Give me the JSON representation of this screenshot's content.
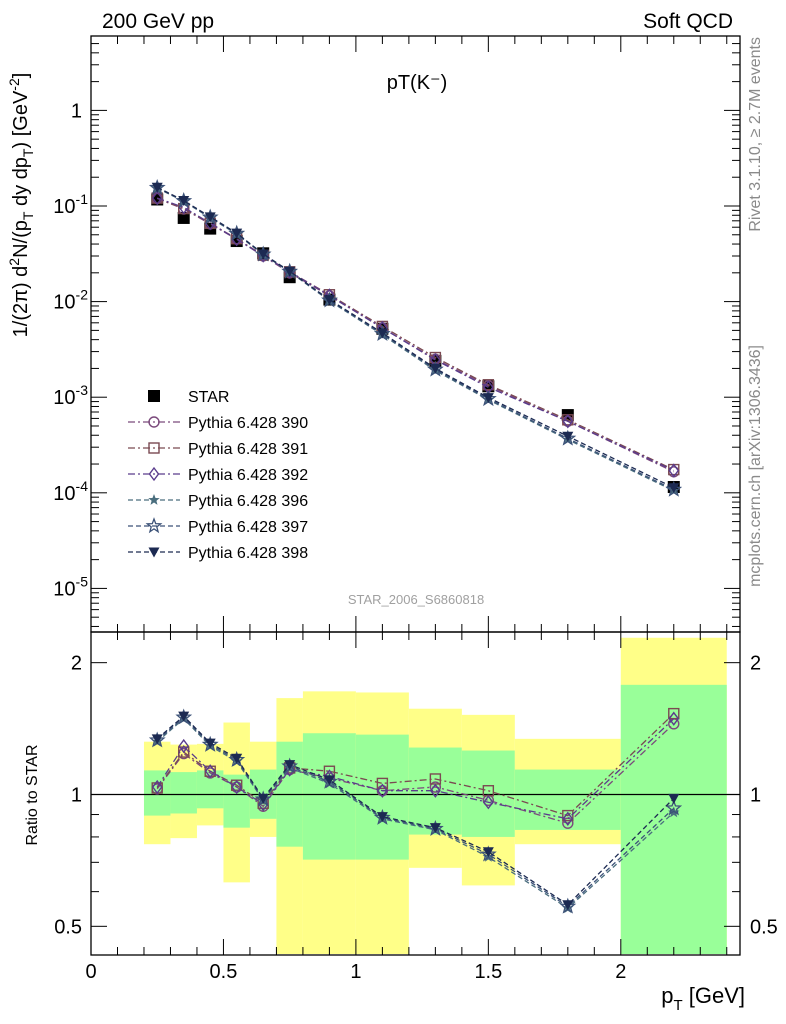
{
  "header": {
    "left": "200 GeV pp",
    "right": "Soft QCD"
  },
  "side_text": {
    "top": "Rivet 3.1.10, ≥ 2.7M events",
    "bottom": "mcplots.cern.ch [arXiv:1306.3436]"
  },
  "chart_data": [
    {
      "type": "scatter",
      "title": "pT(K⁻)",
      "watermark": "STAR_2006_S6860818",
      "ylabel": "1/(2π) d²N/(p_T dy dp_T) [GeV⁻²]",
      "yscale": "log",
      "xlim": [
        0,
        2.45
      ],
      "ylim": [
        3.5e-06,
        6
      ],
      "y_tick_labels": [
        "1",
        "10⁻¹",
        "10⁻²",
        "10⁻³",
        "10⁻⁴",
        "10⁻⁵"
      ],
      "legend_position": "bottom-left",
      "x": [
        0.25,
        0.35,
        0.45,
        0.55,
        0.65,
        0.75,
        0.9,
        1.1,
        1.3,
        1.5,
        1.8,
        2.2
      ],
      "series": [
        {
          "name": "STAR",
          "marker": "square-filled",
          "color": "#000000",
          "values": [
            0.117,
            0.075,
            0.058,
            0.043,
            0.032,
            0.018,
            0.0105,
            0.0052,
            0.0024,
            0.0013,
            0.00065,
            0.000115
          ]
        },
        {
          "name": "Pythia 6.428 390",
          "marker": "circle-open",
          "color": "#7b4a7c",
          "dash": "dashdot",
          "values": [
            0.12,
            0.093,
            0.065,
            0.045,
            0.03,
            0.02,
            0.0115,
            0.0053,
            0.0025,
            0.00132,
            0.00056,
            0.000166
          ]
        },
        {
          "name": "Pythia 6.428 391",
          "marker": "square-open",
          "color": "#7b4a52",
          "dash": "dashdot",
          "values": [
            0.121,
            0.094,
            0.066,
            0.0455,
            0.0306,
            0.0205,
            0.0118,
            0.0055,
            0.0026,
            0.00135,
            0.00058,
            0.000175
          ]
        },
        {
          "name": "Pythia 6.428 392",
          "marker": "diamond-open",
          "color": "#5a3c8c",
          "dash": "dashdot",
          "values": [
            0.121,
            0.097,
            0.066,
            0.045,
            0.0303,
            0.0205,
            0.0116,
            0.0053,
            0.00245,
            0.00127,
            0.00056,
            0.000171
          ]
        },
        {
          "name": "Pythia 6.428 396",
          "marker": "star-filled",
          "color": "#4a6e7e",
          "dash": "dashed",
          "values": [
            0.154,
            0.112,
            0.075,
            0.051,
            0.031,
            0.0205,
            0.0102,
            0.0045,
            0.0019,
            0.00094,
            0.00036,
            0.000105
          ]
        },
        {
          "name": "Pythia 6.428 397",
          "marker": "star-open",
          "color": "#3c5278",
          "dash": "dashed",
          "values": [
            0.155,
            0.113,
            0.076,
            0.0515,
            0.0312,
            0.0206,
            0.0103,
            0.0046,
            0.00195,
            0.00096,
            0.00037,
            0.000108
          ]
        },
        {
          "name": "Pythia 6.428 398",
          "marker": "triangle-down-filled",
          "color": "#1c2a52",
          "dash": "dashed",
          "values": [
            0.157,
            0.114,
            0.077,
            0.052,
            0.0315,
            0.0208,
            0.0105,
            0.0047,
            0.002,
            0.00099,
            0.00039,
            0.000113
          ]
        }
      ]
    },
    {
      "type": "scatter",
      "ylabel": "Ratio to STAR",
      "xlabel": "p_T [GeV]",
      "yscale": "log",
      "xlim": [
        0,
        2.45
      ],
      "ylim": [
        0.43,
        2.35
      ],
      "x_ticks": [
        0,
        0.5,
        1,
        1.5,
        2
      ],
      "x_tick_labels": [
        "0",
        "0.5",
        "1",
        "1.5",
        "2"
      ],
      "y_ticks": [
        0.5,
        1,
        2
      ],
      "y_tick_labels": [
        "0.5",
        "1",
        "2"
      ],
      "uncertainty_bands": {
        "bin_edges": [
          0.2,
          0.3,
          0.4,
          0.5,
          0.6,
          0.7,
          0.8,
          1.0,
          1.2,
          1.4,
          1.6,
          2.0,
          2.4
        ],
        "inner_low": [
          0.895,
          0.905,
          0.93,
          0.84,
          0.88,
          0.76,
          0.71,
          0.71,
          0.81,
          0.8,
          0.83,
          0.43
        ],
        "inner_high": [
          1.135,
          1.125,
          1.135,
          1.11,
          1.14,
          1.32,
          1.38,
          1.37,
          1.28,
          1.26,
          1.14,
          1.78
        ],
        "outer_low": [
          0.77,
          0.795,
          0.85,
          0.63,
          0.8,
          0.42,
          0.35,
          0.35,
          0.68,
          0.62,
          0.77,
          0.43
        ],
        "outer_high": [
          1.32,
          1.3,
          1.305,
          1.46,
          1.32,
          1.66,
          1.72,
          1.71,
          1.57,
          1.52,
          1.34,
          2.28
        ],
        "inner_color": "#99ff99",
        "outer_color": "#ffff88"
      },
      "series": [
        {
          "name": "Pythia 6.428 390",
          "values": [
            1.03,
            1.24,
            1.12,
            1.04,
            0.94,
            1.14,
            1.09,
            1.02,
            1.04,
            0.97,
            0.86,
            1.45
          ]
        },
        {
          "name": "Pythia 6.428 391",
          "values": [
            1.035,
            1.25,
            1.13,
            1.05,
            0.955,
            1.15,
            1.13,
            1.06,
            1.085,
            1.02,
            0.895,
            1.53
          ]
        },
        {
          "name": "Pythia 6.428 392",
          "values": [
            1.04,
            1.29,
            1.13,
            1.04,
            0.95,
            1.14,
            1.1,
            1.02,
            1.02,
            0.96,
            0.88,
            1.49
          ]
        },
        {
          "name": "Pythia 6.428 396",
          "values": [
            1.32,
            1.49,
            1.29,
            1.19,
            0.97,
            1.15,
            1.06,
            0.88,
            0.83,
            0.72,
            0.55,
            0.91
          ]
        },
        {
          "name": "Pythia 6.428 397",
          "values": [
            1.33,
            1.5,
            1.3,
            1.2,
            0.975,
            1.16,
            1.07,
            0.885,
            0.835,
            0.73,
            0.555,
            0.93
          ]
        },
        {
          "name": "Pythia 6.428 398",
          "values": [
            1.34,
            1.51,
            1.31,
            1.21,
            0.98,
            1.17,
            1.08,
            0.89,
            0.84,
            0.74,
            0.56,
            0.98
          ]
        }
      ]
    }
  ]
}
